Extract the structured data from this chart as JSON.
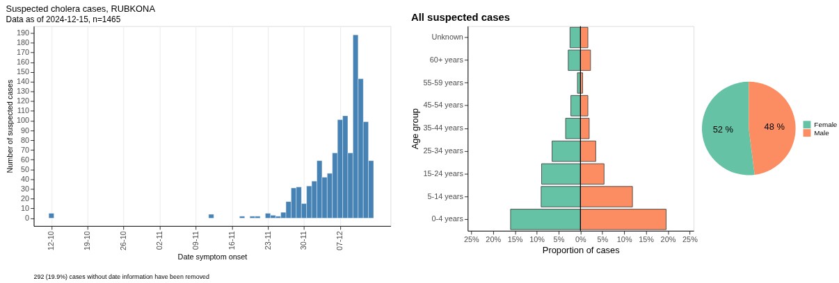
{
  "chart_data": [
    {
      "type": "bar",
      "title": "Suspected cholera cases, RUBKONA",
      "subtitle": "Data as of 2024-12-15, n=1465",
      "xlabel": "Date symptom onset",
      "ylabel": "Number of suspected cases",
      "x": [
        "2024-10-12",
        "2024-11-12",
        "2024-11-18",
        "2024-11-20",
        "2024-11-21",
        "2024-11-23",
        "2024-11-24",
        "2024-11-25",
        "2024-11-26",
        "2024-11-27",
        "2024-11-28",
        "2024-11-29",
        "2024-11-30",
        "2024-12-01",
        "2024-12-02",
        "2024-12-03",
        "2024-12-04",
        "2024-12-05",
        "2024-12-06",
        "2024-12-07",
        "2024-12-08",
        "2024-12-09",
        "2024-12-10",
        "2024-12-11",
        "2024-12-12",
        "2024-12-13"
      ],
      "values": [
        5,
        4,
        2,
        2,
        2,
        5,
        3,
        2,
        6,
        17,
        31,
        32,
        15,
        33,
        38,
        59,
        42,
        46,
        67,
        101,
        105,
        67,
        188,
        143,
        99,
        59
      ],
      "color": "#4682b4",
      "xlim": [
        "2024-10-08T14:00",
        "2024-12-16T19:00"
      ],
      "xticks": [
        {
          "value": "2024-10-12",
          "label": "12-10"
        },
        {
          "value": "2024-10-19",
          "label": "19-10"
        },
        {
          "value": "2024-10-26",
          "label": "26-10"
        },
        {
          "value": "2024-11-02",
          "label": "02-11"
        },
        {
          "value": "2024-11-09",
          "label": "09-11"
        },
        {
          "value": "2024-11-16",
          "label": "16-11"
        },
        {
          "value": "2024-11-23",
          "label": "23-11"
        },
        {
          "value": "2024-11-30",
          "label": "30-11"
        },
        {
          "value": "2024-12-07",
          "label": "07-12"
        }
      ],
      "ylim": [
        -8,
        197
      ],
      "yticks": [
        0,
        10,
        20,
        30,
        40,
        50,
        60,
        70,
        80,
        90,
        100,
        110,
        120,
        130,
        140,
        150,
        160,
        170,
        180,
        190
      ],
      "grid": "x",
      "annotations": [
        "292 (19.9%) cases without date information have been removed"
      ]
    },
    {
      "type": "bar",
      "orientation": "horizontal",
      "title": "All suspected cases",
      "xlabel": "Proportion of cases",
      "ylabel": "Age group",
      "categories": [
        "Unknown",
        "60+ years",
        "55-59 years",
        "45-54 years",
        "35-44 years",
        "25-34 years",
        "15-24 years",
        "5-14 years",
        "0-4 years"
      ],
      "series": [
        {
          "color": "#66c2a5",
          "values": [
            -2.4,
            -2.8,
            -0.7,
            -2.2,
            -3.4,
            -6.5,
            -8.9,
            -9.0,
            -16.0
          ]
        },
        {
          "color": "#fc8d62",
          "values": [
            1.7,
            2.3,
            0.5,
            1.7,
            2.0,
            3.5,
            5.4,
            11.9,
            19.6
          ]
        }
      ],
      "xlim": [
        -25.8,
        25.9
      ],
      "xticks": [
        {
          "value": -25,
          "label": "25%"
        },
        {
          "value": -20,
          "label": "20%"
        },
        {
          "value": -15,
          "label": "15%"
        },
        {
          "value": -10,
          "label": "10%"
        },
        {
          "value": -5,
          "label": "5%"
        },
        {
          "value": 0,
          "label": "0%"
        },
        {
          "value": 5,
          "label": "5%"
        },
        {
          "value": 10,
          "label": "10%"
        },
        {
          "value": 15,
          "label": "15%"
        },
        {
          "value": 20,
          "label": "20%"
        },
        {
          "value": 25,
          "label": "25%"
        }
      ],
      "ref_lines": [
        {
          "axis": "x",
          "value": 0,
          "color": "#000000"
        }
      ],
      "stacked": true
    },
    {
      "type": "pie",
      "categories": [
        "Female",
        "Male"
      ],
      "values": [
        52,
        48
      ],
      "colors": [
        "#66c2a5",
        "#fc8d62"
      ],
      "value_labels": [
        "52 %",
        "48 %"
      ],
      "legend": "right"
    }
  ]
}
